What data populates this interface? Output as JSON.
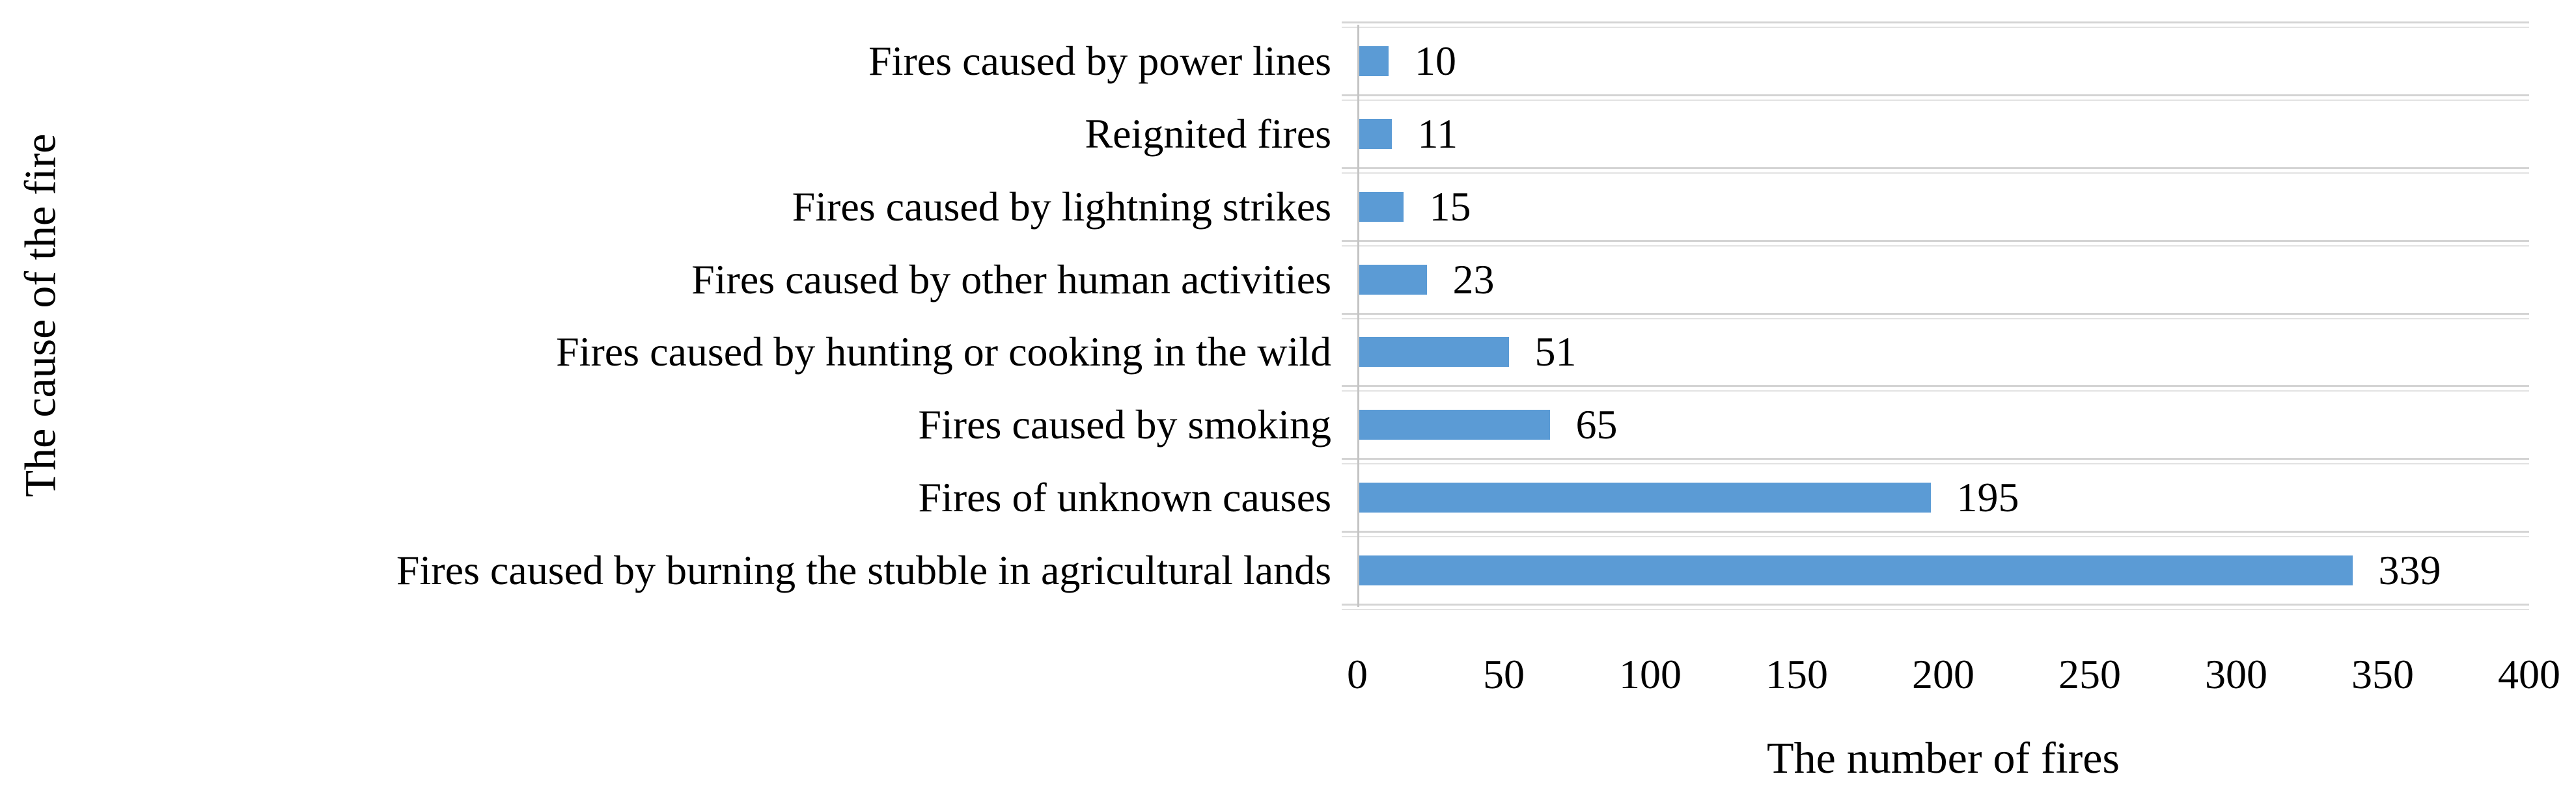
{
  "chart_data": {
    "type": "bar",
    "orientation": "horizontal",
    "title": "",
    "xlabel": "The number of fires",
    "ylabel": "The cause of the fire",
    "categories": [
      "Fires caused by power lines",
      "Reignited fires",
      "Fires caused by lightning strikes",
      "Fires caused by other human activities",
      "Fires caused by hunting or cooking in the wild",
      "Fires caused by smoking",
      "Fires of unknown causes",
      "Fires caused by burning the stubble in agricultural lands"
    ],
    "values": [
      10,
      11,
      15,
      23,
      51,
      65,
      195,
      339
    ],
    "data_labels": [
      10,
      11,
      15,
      23,
      51,
      65,
      195,
      339
    ],
    "xlim": [
      0,
      400
    ],
    "xticks": [
      0,
      50,
      100,
      150,
      200,
      250,
      300,
      350,
      400
    ],
    "grid": "horizontal lines between category rows, light gray",
    "legend": "none",
    "colors": {
      "bar": "#5B9BD5",
      "gridline": "#d4d4d4",
      "axis_line": "#c4c4c4",
      "text": "#000000",
      "background": "#ffffff"
    }
  }
}
